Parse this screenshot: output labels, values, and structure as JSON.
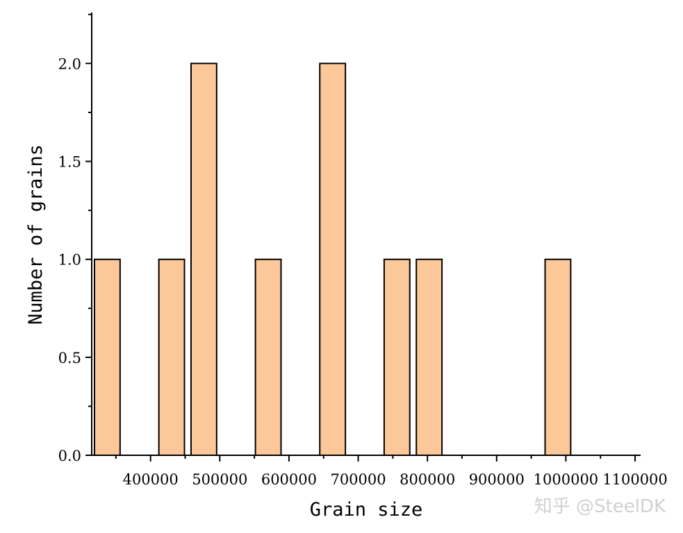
{
  "chart_data": {
    "type": "bar",
    "bar_width": 37000,
    "series": [
      {
        "x": [
          337500,
          430500,
          477000,
          570000,
          663000,
          756000,
          802500,
          988500
        ],
        "values": [
          1,
          1,
          2,
          1,
          2,
          1,
          1,
          1
        ]
      }
    ],
    "xlabel": "Grain size",
    "ylabel": "Number of grains",
    "xlim": [
      315000,
      1108000
    ],
    "ylim": [
      0,
      2.26
    ],
    "xticks": [
      400000,
      500000,
      600000,
      700000,
      800000,
      900000,
      1000000,
      1100000
    ],
    "xtick_labels": [
      "400000",
      "500000",
      "600000",
      "700000",
      "800000",
      "900000",
      "1000000",
      "1100000"
    ],
    "yticks": [
      0,
      0.5,
      1,
      1.5,
      2
    ],
    "ytick_labels": [
      "0.0",
      "0.5",
      "1.0",
      "1.5",
      "2.0"
    ],
    "grid": false,
    "bar_color": "#fdc899",
    "bar_edge_color": "#000000"
  },
  "watermark": "知乎 @SteelDK"
}
